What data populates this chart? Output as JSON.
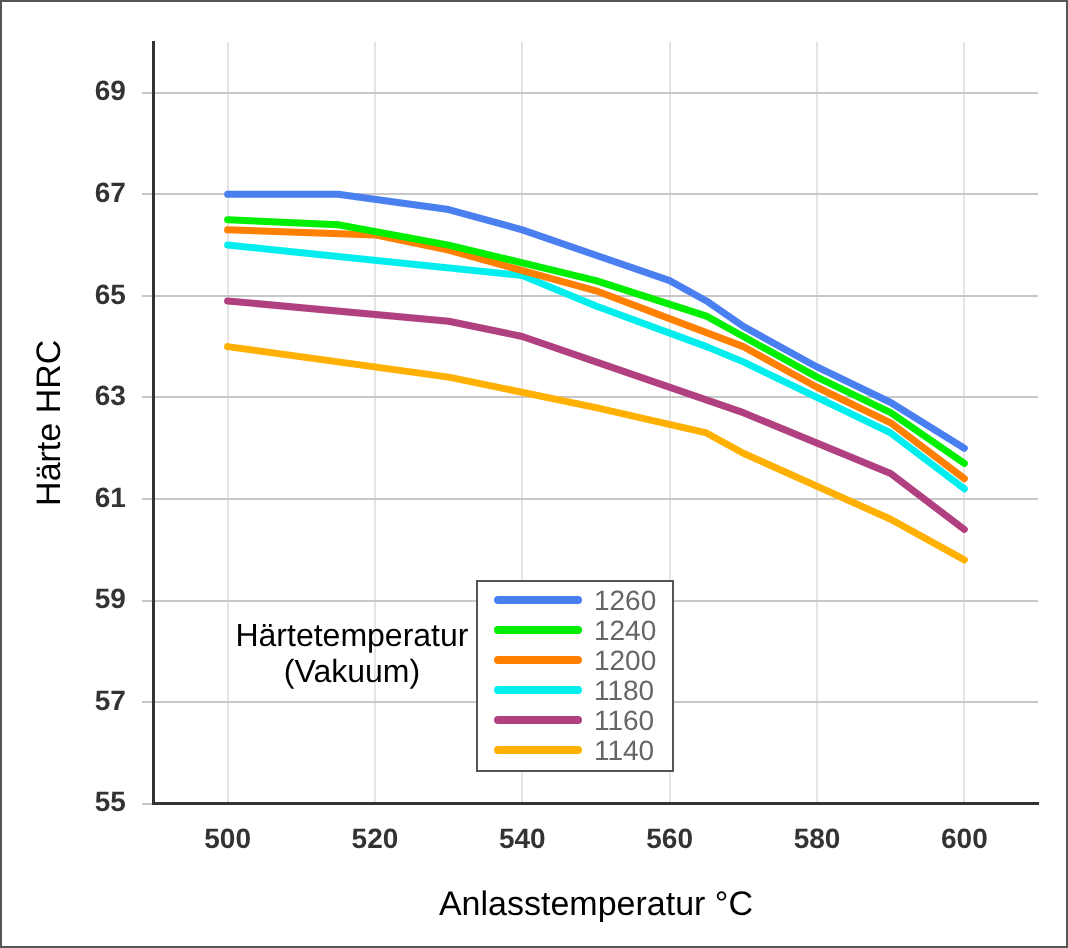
{
  "chart_data": {
    "type": "line",
    "xlabel": "Anlasstemperatur °C",
    "ylabel": "Härte HRC",
    "legend_title": "Härtetemperatur (Vakuum)",
    "xlim": [
      490,
      610
    ],
    "xticks": [
      500,
      520,
      540,
      560,
      580,
      600
    ],
    "ylim": [
      55,
      70
    ],
    "yticks": [
      55,
      57,
      59,
      61,
      63,
      65,
      67,
      69
    ],
    "grid": true,
    "legend": "bottom",
    "marker": "none",
    "line_style": "solid",
    "series": [
      {
        "name": "1260",
        "color": "#4a7ff0",
        "x": [
          500,
          515,
          530,
          540,
          550,
          560,
          565,
          570,
          580,
          590,
          600
        ],
        "values": [
          67.0,
          67.0,
          66.7,
          66.3,
          65.8,
          65.3,
          64.9,
          64.4,
          63.6,
          62.9,
          62.0
        ]
      },
      {
        "name": "1240",
        "color": "#00ee00",
        "x": [
          500,
          515,
          530,
          550,
          565,
          570,
          580,
          590,
          600
        ],
        "values": [
          66.5,
          66.4,
          66.0,
          65.3,
          64.6,
          64.2,
          63.4,
          62.7,
          61.7
        ]
      },
      {
        "name": "1200",
        "color": "#ff7f00",
        "x": [
          500,
          520,
          530,
          550,
          570,
          580,
          590,
          600
        ],
        "values": [
          66.3,
          66.2,
          65.9,
          65.1,
          64.0,
          63.2,
          62.5,
          61.4
        ]
      },
      {
        "name": "1180",
        "color": "#00eeee",
        "x": [
          500,
          540,
          550,
          565,
          570,
          590,
          600
        ],
        "values": [
          66.0,
          65.4,
          64.8,
          64.0,
          63.7,
          62.3,
          61.2
        ]
      },
      {
        "name": "1160",
        "color": "#b04080",
        "x": [
          500,
          530,
          540,
          550,
          570,
          590,
          600
        ],
        "values": [
          64.9,
          64.5,
          64.2,
          63.7,
          62.7,
          61.5,
          60.4
        ]
      },
      {
        "name": "1140",
        "color": "#ffb000",
        "x": [
          500,
          530,
          550,
          565,
          570,
          590,
          600
        ],
        "values": [
          64.0,
          63.4,
          62.8,
          62.3,
          61.9,
          60.6,
          59.8
        ]
      }
    ]
  }
}
